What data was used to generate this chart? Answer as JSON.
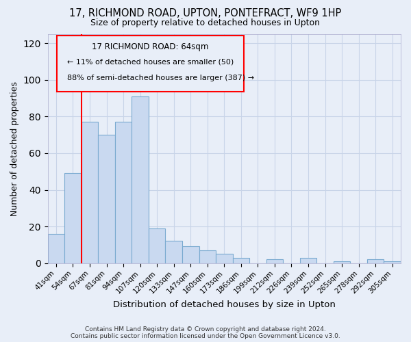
{
  "title": "17, RICHMOND ROAD, UPTON, PONTEFRACT, WF9 1HP",
  "subtitle": "Size of property relative to detached houses in Upton",
  "xlabel": "Distribution of detached houses by size in Upton",
  "ylabel": "Number of detached properties",
  "bar_color": "#c9d9f0",
  "bar_edge_color": "#7aaad0",
  "categories": [
    "41sqm",
    "54sqm",
    "67sqm",
    "81sqm",
    "94sqm",
    "107sqm",
    "120sqm",
    "133sqm",
    "147sqm",
    "160sqm",
    "173sqm",
    "186sqm",
    "199sqm",
    "212sqm",
    "226sqm",
    "239sqm",
    "252sqm",
    "265sqm",
    "278sqm",
    "292sqm",
    "305sqm"
  ],
  "values": [
    16,
    49,
    77,
    70,
    77,
    91,
    19,
    12,
    9,
    7,
    5,
    3,
    0,
    2,
    0,
    3,
    0,
    1,
    0,
    2,
    1
  ],
  "ylim": [
    0,
    125
  ],
  "yticks": [
    0,
    20,
    40,
    60,
    80,
    100,
    120
  ],
  "annotation_title": "17 RICHMOND ROAD: 64sqm",
  "annotation_line1": "← 11% of detached houses are smaller (50)",
  "annotation_line2": "88% of semi-detached houses are larger (387) →",
  "footer_line1": "Contains HM Land Registry data © Crown copyright and database right 2024.",
  "footer_line2": "Contains public sector information licensed under the Open Government Licence v3.0.",
  "background_color": "#e8eef8",
  "plot_background": "#e8eef8",
  "grid_color": "#c8d4e8"
}
